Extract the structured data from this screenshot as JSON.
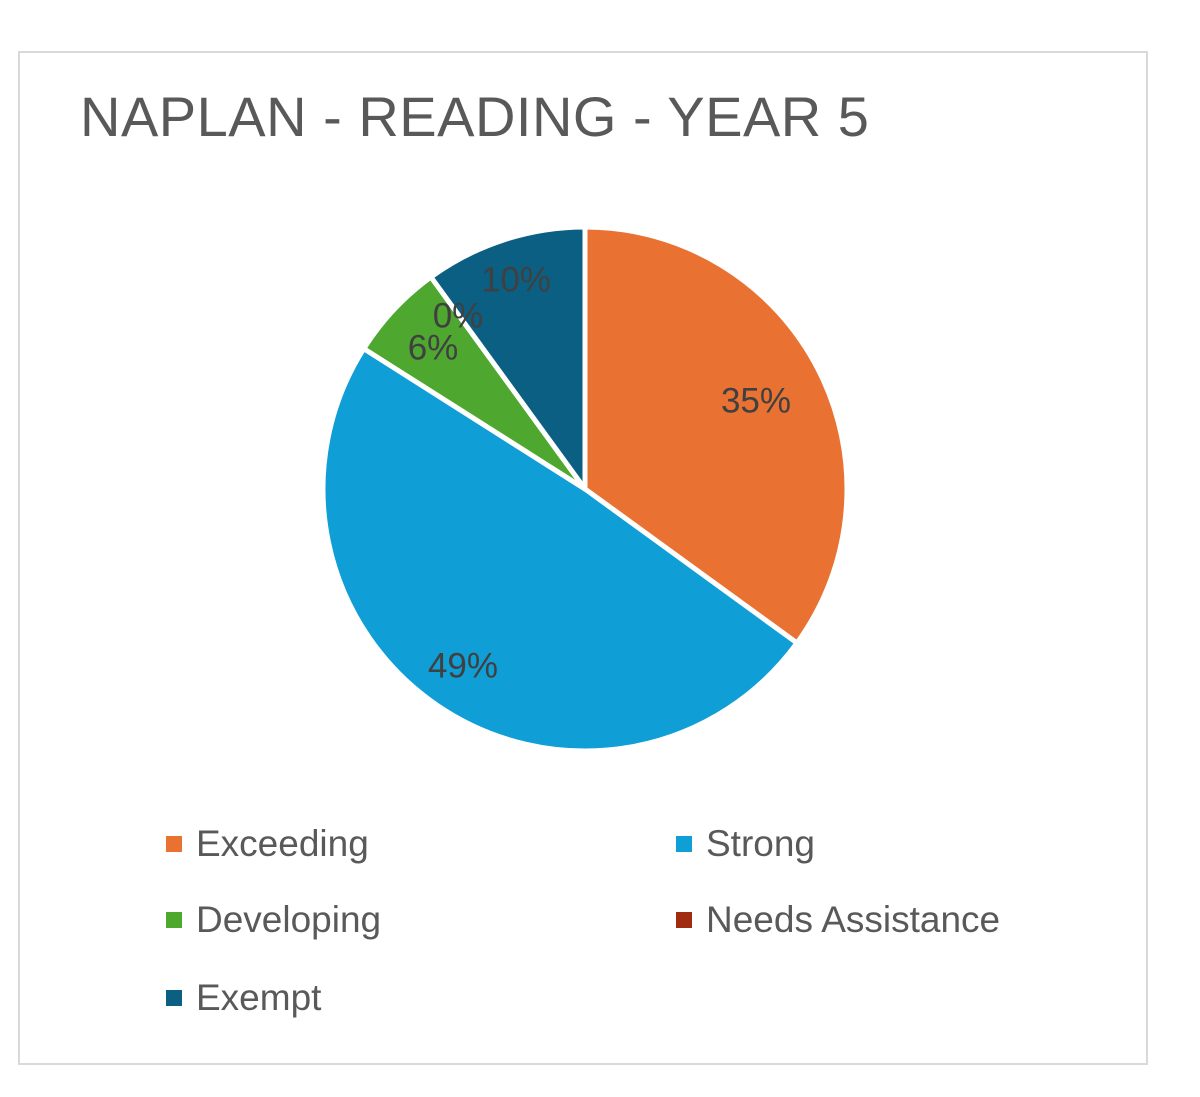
{
  "chart_data": {
    "type": "pie",
    "title": "NAPLAN - READING - YEAR 5",
    "categories": [
      "Exceeding",
      "Strong",
      "Developing",
      "Needs Assistance",
      "Exempt"
    ],
    "values": [
      35,
      49,
      6,
      0,
      10
    ],
    "data_labels": [
      "35%",
      "49%",
      "6%",
      "0%",
      "10%"
    ],
    "colors": [
      "#e97132",
      "#0f9ed5",
      "#4ea72e",
      "#a02b0f",
      "#0b5f82"
    ],
    "legend_position": "bottom"
  }
}
